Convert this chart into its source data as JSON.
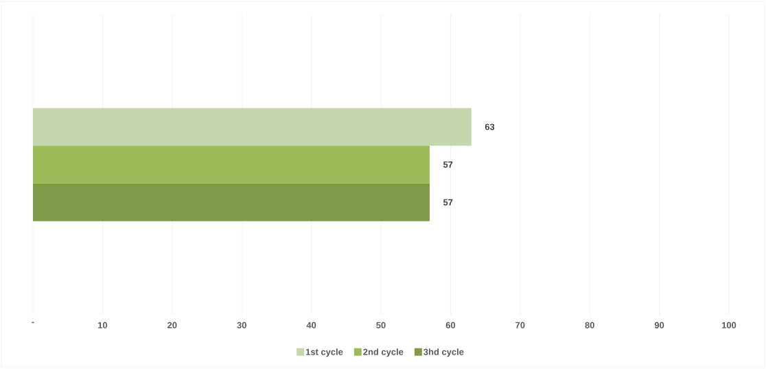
{
  "chart_data": {
    "type": "bar",
    "orientation": "horizontal",
    "categories": [
      null
    ],
    "series": [
      {
        "name": "1st cycle",
        "color": "#c5d8ad",
        "values": [
          63
        ]
      },
      {
        "name": "2nd cycle",
        "color": "#9bbb59",
        "values": [
          57
        ]
      },
      {
        "name": "3hd cycle",
        "color": "#7f9a48",
        "values": [
          57
        ]
      }
    ],
    "xlim": [
      0,
      100
    ],
    "xticks": [
      {
        "value": 0,
        "label": "-"
      },
      10,
      20,
      30,
      40,
      50,
      60,
      70,
      80,
      90,
      100
    ],
    "grid": "x",
    "legend": "bottom",
    "data_labels": true
  }
}
